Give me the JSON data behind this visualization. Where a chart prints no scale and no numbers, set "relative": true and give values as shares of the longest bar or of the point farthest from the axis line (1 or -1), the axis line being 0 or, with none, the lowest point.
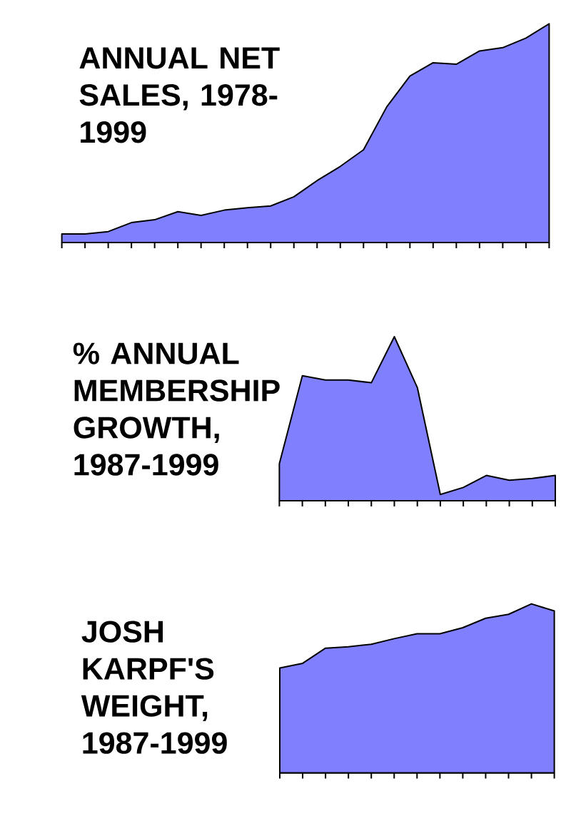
{
  "chart_data": [
    {
      "type": "area",
      "title": "ANNUAL NET SALES, 1978-1999",
      "categories": [
        null,
        null,
        null,
        null,
        null,
        null,
        null,
        null,
        null,
        null,
        null,
        null,
        null,
        null,
        null,
        null,
        null,
        null,
        null,
        null,
        null,
        null
      ],
      "values": [
        0.039,
        0.039,
        0.05,
        0.091,
        0.104,
        0.141,
        0.124,
        0.148,
        0.159,
        0.167,
        0.209,
        0.283,
        0.348,
        0.424,
        0.62,
        0.761,
        0.822,
        0.815,
        0.876,
        0.891,
        0.935,
        1.0
      ],
      "color": "#8080ff",
      "relative": true
    },
    {
      "type": "area",
      "title": "% ANNUAL MEMBERSHIP GROWTH, 1987-1999",
      "categories": [
        null,
        null,
        null,
        null,
        null,
        null,
        null,
        null,
        null,
        null,
        null,
        null,
        null
      ],
      "values": [
        0.226,
        0.762,
        0.736,
        0.736,
        0.719,
        1.0,
        0.69,
        0.038,
        0.081,
        0.154,
        0.125,
        0.136,
        0.154
      ],
      "color": "#8080ff",
      "relative": true
    },
    {
      "type": "area",
      "title": "JOSH KARPF'S WEIGHT, 1987-1999",
      "categories": [
        null,
        null,
        null,
        null,
        null,
        null,
        null,
        null,
        null,
        null,
        null,
        null,
        null
      ],
      "values": [
        0.62,
        0.648,
        0.738,
        0.746,
        0.761,
        0.794,
        0.823,
        0.823,
        0.859,
        0.915,
        0.938,
        1.0,
        0.958
      ],
      "color": "#8080ff",
      "relative": true
    }
  ]
}
